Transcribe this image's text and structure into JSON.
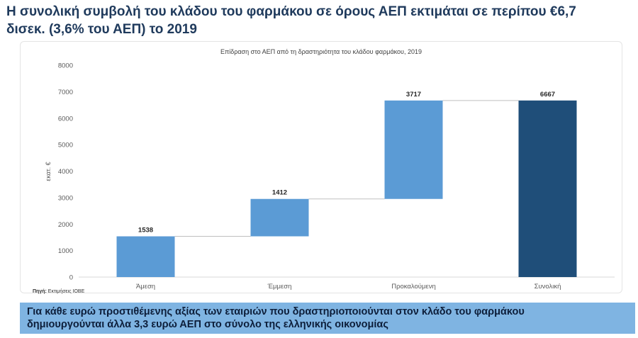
{
  "page": {
    "title_line1": "Η συνολική συμβολή του κλάδου του φαρμάκου σε όρους ΑΕΠ εκτιμάται σε περίπου €6,7",
    "title_line2": "δισεκ. (3,6% του ΑΕΠ) το 2019",
    "source_label": "Πηγή:",
    "source_text": "Εκτιμήσεις ΙΟΒΕ",
    "callout_line1": "Για κάθε ευρώ προστιθέμενης αξίας των εταιριών που δραστηριοποιούνται στον κλάδο του φαρμάκου",
    "callout_line2": "δημιουργούνται άλλα 3,3 ευρώ ΑΕΠ στο σύνολο της ελληνικής οικονομίας"
  },
  "chart_data": {
    "type": "bar",
    "subtype": "waterfall",
    "title": "Επίδραση στο ΑΕΠ από τη δραστηριότητα του κλάδου φαρμάκου, 2019",
    "xlabel": "",
    "ylabel": "εκατ. €",
    "ylim": [
      0,
      8000
    ],
    "yticks": [
      0,
      1000,
      2000,
      3000,
      4000,
      5000,
      6000,
      7000,
      8000
    ],
    "grid": false,
    "categories": [
      "Άμεση",
      "Έμμεση",
      "Προκαλούμενη",
      "Συνολική"
    ],
    "values": [
      1538,
      1412,
      3717,
      6667
    ],
    "bar_kind": [
      "increment",
      "increment",
      "increment",
      "total"
    ],
    "colors": {
      "increment": "#5b9bd5",
      "total": "#1f4e79"
    }
  }
}
